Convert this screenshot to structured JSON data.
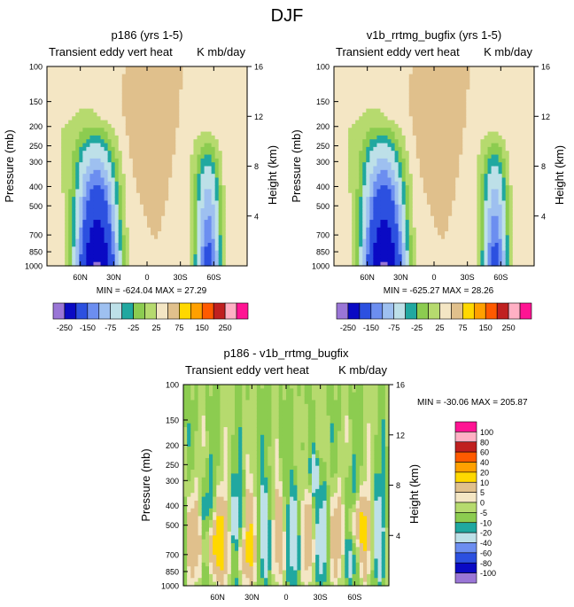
{
  "figure_title": "DJF",
  "colors": {
    "top": [
      "#9a76d6",
      "#0a0ac4",
      "#2c50e0",
      "#6c8ef0",
      "#9ec0f0",
      "#bde0e8",
      "#20a8a0",
      "#8ccc50",
      "#b6da6e",
      "#f4e6c4",
      "#e0c08c",
      "#ffd800",
      "#ffa000",
      "#ff5a00",
      "#c02020",
      "#ffb0c4",
      "#ff1493"
    ],
    "diff": [
      "#9a76d6",
      "#0a0ac4",
      "#2c50e0",
      "#6c8ef0",
      "#9ec0f0",
      "#bde0e8",
      "#20a8a0",
      "#8ccc50",
      "#b6da6e",
      "#f4e6c4",
      "#e0c08c",
      "#ffd800",
      "#ffa000",
      "#ff5a00",
      "#c02020",
      "#ffb0c4",
      "#ff1493"
    ]
  },
  "chart_data": [
    {
      "type": "contour",
      "title": "p186 (yrs 1-5)",
      "left_string": "Transient eddy vert heat",
      "right_string": "K mb/day",
      "ylabel": "Pressure (mb)",
      "ylabel_right": "Height (km)",
      "pressure_ticks": [
        "100",
        "150",
        "200",
        "250",
        "300",
        "400",
        "500",
        "700",
        "850",
        "1000"
      ],
      "height_ticks": [
        "16",
        "12",
        "8",
        "4"
      ],
      "x_ticks": [
        "60N",
        "30N",
        "0",
        "30S",
        "60S"
      ],
      "x_tick_lats": [
        60,
        30,
        0,
        -30,
        -60
      ],
      "lat_range": [
        90,
        -90
      ],
      "stats": "MIN = -624.04  MAX = 27.29",
      "min": -624.04,
      "max": 27.29,
      "colorbar_labels": [
        "-250",
        "-150",
        "-75",
        "-25",
        "25",
        "75",
        "150",
        "250"
      ]
    },
    {
      "type": "contour",
      "title": "v1b_rrtmg_bugfix (yrs 1-5)",
      "left_string": "Transient eddy vert heat",
      "right_string": "K mb/day",
      "ylabel": "Pressure (mb)",
      "ylabel_right": "Height (km)",
      "pressure_ticks": [
        "100",
        "150",
        "200",
        "250",
        "300",
        "400",
        "500",
        "700",
        "850",
        "1000"
      ],
      "height_ticks": [
        "16",
        "12",
        "8",
        "4"
      ],
      "x_ticks": [
        "60N",
        "30N",
        "0",
        "30S",
        "60S"
      ],
      "x_tick_lats": [
        60,
        30,
        0,
        -30,
        -60
      ],
      "lat_range": [
        90,
        -90
      ],
      "stats": "MIN = -625.27  MAX = 28.26",
      "min": -625.27,
      "max": 28.26,
      "colorbar_labels": [
        "-250",
        "-150",
        "-75",
        "-25",
        "25",
        "75",
        "150",
        "250"
      ]
    },
    {
      "type": "contour",
      "title": "p186 - v1b_rrtmg_bugfix",
      "left_string": "Transient eddy vert heat",
      "right_string": "K mb/day",
      "ylabel": "Pressure (mb)",
      "ylabel_right": "Height (km)",
      "pressure_ticks": [
        "100",
        "150",
        "200",
        "250",
        "300",
        "400",
        "500",
        "700",
        "850",
        "1000"
      ],
      "height_ticks": [
        "16",
        "12",
        "8",
        "4"
      ],
      "x_ticks": [
        "60N",
        "30N",
        "0",
        "30S",
        "60S"
      ],
      "x_tick_lats": [
        60,
        30,
        0,
        -30,
        -60
      ],
      "lat_range": [
        90,
        -90
      ],
      "stats": "MIN = -30.06  MAX = 205.87",
      "min": -30.06,
      "max": 205.87,
      "colorbar_labels": [
        "100",
        "80",
        "60",
        "40",
        "20",
        "10",
        "5",
        "0",
        "-5",
        "-10",
        "-20",
        "-40",
        "-60",
        "-80",
        "-100"
      ]
    }
  ]
}
